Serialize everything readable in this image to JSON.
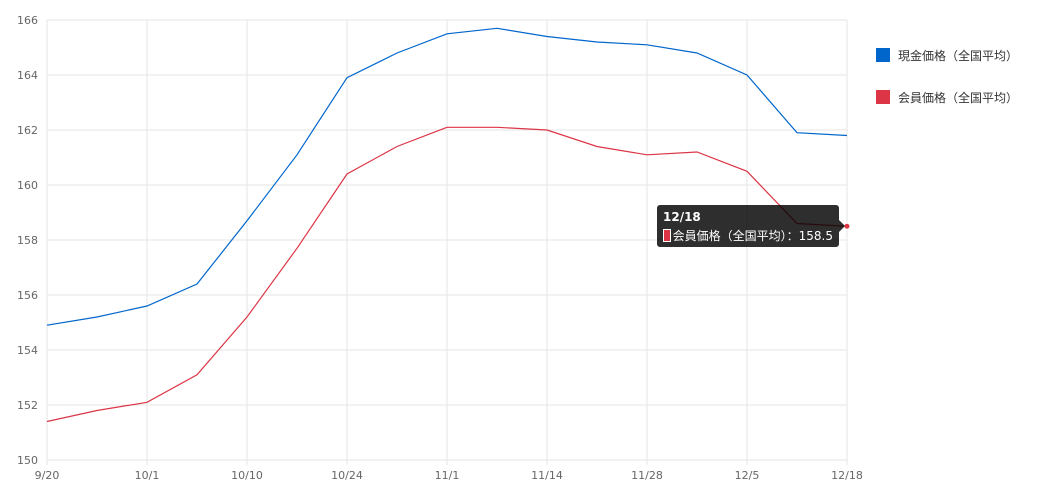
{
  "chart_data": {
    "type": "line",
    "x": [
      "9/20",
      "",
      "10/1",
      "",
      "10/10",
      "",
      "10/24",
      "",
      "11/1",
      "",
      "11/14",
      "",
      "11/28",
      "",
      "12/5",
      "",
      "12/18"
    ],
    "x_tick_labels": [
      "9/20",
      "10/1",
      "10/10",
      "10/24",
      "11/1",
      "11/14",
      "11/28",
      "12/5",
      "12/18"
    ],
    "y_ticks": [
      150,
      152,
      154,
      156,
      158,
      160,
      162,
      164,
      166
    ],
    "ylim": [
      150,
      166
    ],
    "grid": true,
    "legend_position": "right",
    "series": [
      {
        "name": "現金価格（全国平均）",
        "color": "#0066cc",
        "values": [
          154.9,
          155.2,
          155.6,
          156.4,
          158.7,
          161.1,
          163.9,
          164.8,
          165.5,
          165.7,
          165.4,
          165.2,
          165.1,
          164.8,
          164.0,
          161.9,
          161.8
        ]
      },
      {
        "name": "会員価格（全国平均）",
        "color": "#dc3545",
        "values": [
          151.4,
          151.8,
          152.1,
          153.1,
          155.2,
          157.7,
          160.4,
          161.4,
          162.1,
          162.1,
          162.0,
          161.4,
          161.1,
          161.2,
          160.5,
          158.6,
          158.5
        ]
      }
    ],
    "tooltip": {
      "title": "12/18",
      "label": "会員価格（全国平均）：158.5",
      "color": "#dc3545"
    }
  }
}
